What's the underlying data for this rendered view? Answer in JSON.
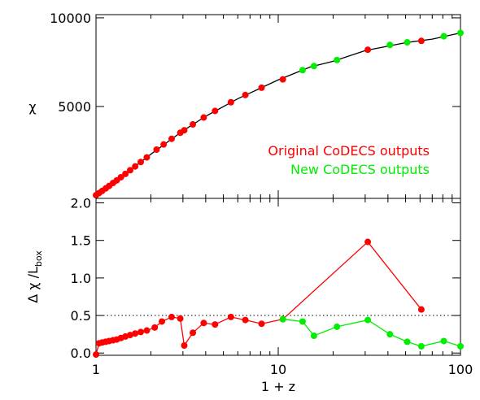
{
  "chart_data": [
    {
      "type": "line",
      "ylabel": "χ",
      "xscale": "log",
      "xlim": [
        1,
        100
      ],
      "ylim": [
        -180,
        10180
      ],
      "yticks": [
        5000,
        10000
      ],
      "xticks": [
        1,
        10,
        100
      ],
      "xminorticks": [
        2,
        3,
        4,
        5,
        6,
        7,
        8,
        9,
        20,
        30,
        40,
        50,
        60,
        70,
        80,
        90
      ],
      "series": [
        {
          "color": "#000000",
          "line": true,
          "marker": false,
          "x": [
            1,
            1.2,
            1.5,
            2,
            3,
            4,
            6,
            10,
            15,
            20,
            30,
            50,
            70,
            100
          ],
          "values": [
            0,
            570,
            1323,
            2310,
            3630,
            4450,
            5440,
            6500,
            7230,
            7550,
            8150,
            8600,
            8800,
            9150
          ]
        },
        {
          "name": "Original CoDECS outputs",
          "color": "#ff0000",
          "line": false,
          "marker": true,
          "x": [
            1.0,
            1.04,
            1.08,
            1.13,
            1.18,
            1.24,
            1.3,
            1.37,
            1.45,
            1.54,
            1.64,
            1.76,
            1.9,
            2.15,
            2.35,
            2.6,
            2.9,
            3.05,
            3.4,
            3.9,
            4.5,
            5.5,
            6.6,
            8.1,
            10.6,
            31,
            61
          ],
          "values": [
            0,
            119,
            236,
            380,
            521,
            686,
            836,
            1013,
            1200,
            1410,
            1620,
            1870,
            2130,
            2570,
            2860,
            3180,
            3520,
            3660,
            3990,
            4380,
            4750,
            5240,
            5650,
            6060,
            6530,
            8200,
            8700
          ]
        },
        {
          "name": "New CoDECS outputs",
          "color": "#00ee00",
          "line": false,
          "marker": true,
          "x": [
            13.6,
            15.7,
            21,
            41,
            51,
            81,
            100
          ],
          "values": [
            7050,
            7280,
            7620,
            8470,
            8620,
            8960,
            9150
          ]
        }
      ]
    },
    {
      "type": "line",
      "ylabel": "Δ χ /L",
      "ylabel_sub": "box",
      "xlabel": "1 + z",
      "xscale": "log",
      "xlim": [
        1,
        100
      ],
      "ylim": [
        -0.03,
        2.06
      ],
      "yticks": [
        {
          "value": 0,
          "label": "0.0"
        },
        0.5,
        {
          "value": 1,
          "label": "1.0"
        },
        1.5,
        {
          "value": 2,
          "label": "2.0"
        }
      ],
      "xticks": [
        1,
        10,
        100
      ],
      "xminorticks": [
        2,
        3,
        4,
        5,
        6,
        7,
        8,
        9,
        20,
        30,
        40,
        50,
        60,
        70,
        80,
        90
      ],
      "hline": 0.5,
      "series": [
        {
          "color": "#ff0000",
          "line": true,
          "marker": true,
          "x": [
            1.0,
            1.04,
            1.08,
            1.13,
            1.18,
            1.24,
            1.3,
            1.37,
            1.45,
            1.54,
            1.64,
            1.76,
            1.9,
            2.1,
            2.3,
            2.6,
            2.9,
            3.05,
            3.4,
            3.9,
            4.5,
            5.5,
            6.6,
            8.1,
            10.6,
            31,
            61
          ],
          "values": [
            -0.02,
            0.13,
            0.14,
            0.15,
            0.16,
            0.17,
            0.18,
            0.2,
            0.22,
            0.24,
            0.26,
            0.28,
            0.3,
            0.34,
            0.42,
            0.48,
            0.46,
            0.1,
            0.27,
            0.4,
            0.38,
            0.48,
            0.44,
            0.39,
            0.45,
            1.48,
            0.58
          ]
        },
        {
          "color": "#00ee00",
          "line": true,
          "marker": true,
          "x": [
            10.6,
            13.6,
            15.7,
            21,
            31,
            41,
            51,
            61,
            81,
            100
          ],
          "values": [
            0.45,
            0.42,
            0.23,
            0.35,
            0.44,
            0.25,
            0.15,
            0.09,
            0.16,
            0.09
          ]
        }
      ]
    }
  ]
}
